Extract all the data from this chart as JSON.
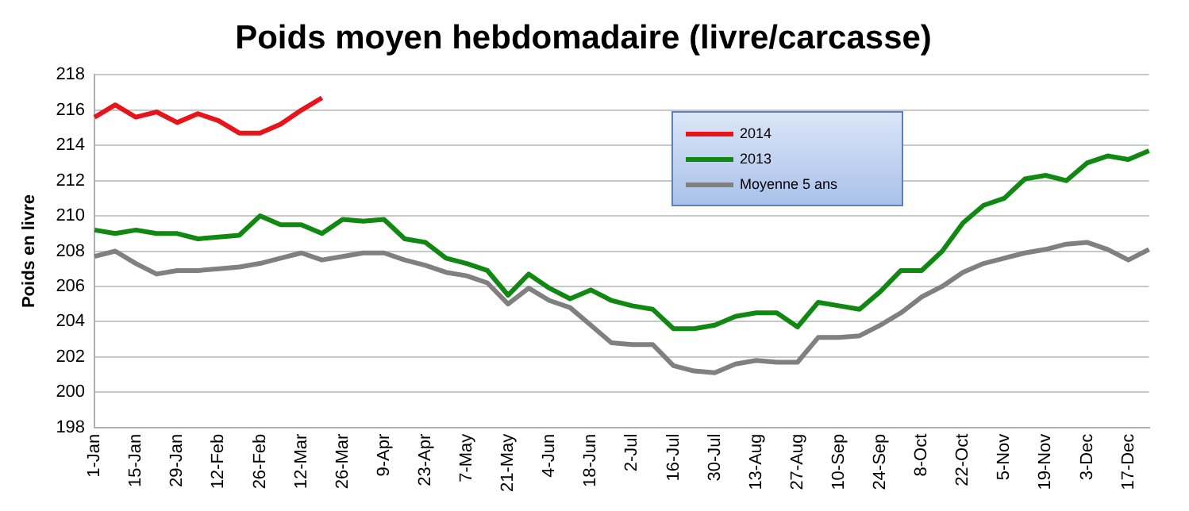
{
  "chart_data": {
    "type": "line",
    "title": "Poids moyen hebdomadaire (livre/carcasse)",
    "ylabel": "Poids en livre",
    "categories": [
      "1-Jan",
      null,
      "15-Jan",
      null,
      "29-Jan",
      null,
      "12-Feb",
      null,
      "26-Feb",
      null,
      "12-Mar",
      null,
      "26-Mar",
      null,
      "9-Apr",
      null,
      "23-Apr",
      null,
      "7-May",
      null,
      "21-May",
      null,
      "4-Jun",
      null,
      "18-Jun",
      null,
      "2-Jul",
      null,
      "16-Jul",
      null,
      "30-Jul",
      null,
      "13-Aug",
      null,
      "27-Aug",
      null,
      "10-Sep",
      null,
      "24-Sep",
      null,
      "8-Oct",
      null,
      "22-Oct",
      null,
      "5-Nov",
      null,
      "19-Nov",
      null,
      "3-Dec",
      null,
      "17-Dec",
      null
    ],
    "series": [
      {
        "name": "2014",
        "color": "#e8141b",
        "values": [
          215.6,
          216.3,
          215.6,
          215.9,
          215.3,
          215.8,
          215.4,
          214.7,
          214.7,
          215.2,
          216.0,
          216.7,
          null,
          null,
          null,
          null,
          null,
          null,
          null,
          null,
          null,
          null,
          null,
          null,
          null,
          null,
          null,
          null,
          null,
          null,
          null,
          null,
          null,
          null,
          null,
          null,
          null,
          null,
          null,
          null,
          null,
          null,
          null,
          null,
          null,
          null,
          null,
          null,
          null,
          null,
          null,
          null
        ]
      },
      {
        "name": "2013",
        "color": "#118811",
        "values": [
          209.2,
          209.0,
          209.2,
          209.0,
          209.0,
          208.7,
          208.8,
          208.9,
          210.0,
          209.5,
          209.5,
          209.0,
          209.8,
          209.7,
          209.8,
          208.7,
          208.5,
          207.6,
          207.3,
          206.9,
          205.5,
          206.7,
          205.9,
          205.3,
          205.8,
          205.2,
          204.9,
          204.7,
          203.6,
          203.6,
          203.8,
          204.3,
          204.5,
          204.5,
          203.7,
          205.1,
          204.9,
          204.7,
          205.7,
          206.9,
          206.9,
          208.0,
          209.6,
          210.6,
          211.0,
          212.1,
          212.3,
          212.0,
          213.0,
          213.4,
          213.2,
          213.7
        ]
      },
      {
        "name": "Moyenne 5 ans",
        "color": "#808080",
        "values": [
          207.7,
          208.0,
          207.3,
          206.7,
          206.9,
          206.9,
          207.0,
          207.1,
          207.3,
          207.6,
          207.9,
          207.5,
          207.7,
          207.9,
          207.9,
          207.5,
          207.2,
          206.8,
          206.6,
          206.2,
          205.0,
          205.9,
          205.2,
          204.8,
          203.8,
          202.8,
          202.7,
          202.7,
          201.5,
          201.2,
          201.1,
          201.6,
          201.8,
          201.7,
          201.7,
          203.1,
          203.1,
          203.2,
          203.8,
          204.5,
          205.4,
          206.0,
          206.8,
          207.3,
          207.6,
          207.9,
          208.1,
          208.4,
          208.5,
          208.1,
          207.5,
          208.1
        ]
      }
    ],
    "ylim": [
      198,
      218
    ],
    "yticks": [
      198,
      200,
      202,
      204,
      206,
      208,
      210,
      212,
      214,
      216,
      218
    ],
    "grid": "y",
    "legend": "top",
    "marker": "none",
    "line_style": "solid"
  }
}
